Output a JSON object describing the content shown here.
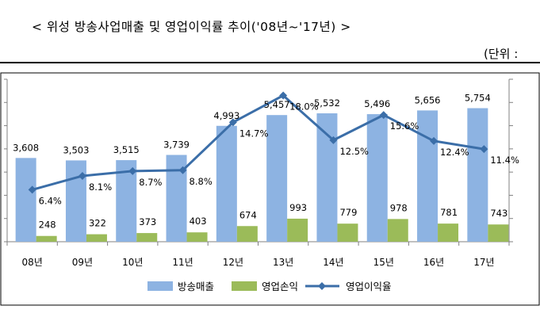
{
  "title": "< 위성 방송사업매출 및 영업이익률 추이('08년~'17년) >",
  "unit": "(단위 :",
  "chart_data": {
    "type": "bar",
    "categories": [
      "08년",
      "09년",
      "10년",
      "11년",
      "12년",
      "13년",
      "14년",
      "15년",
      "16년",
      "17년"
    ],
    "series": [
      {
        "name": "방송매출",
        "type": "bar",
        "color": "#8DB3E2",
        "axis": "left",
        "values": [
          3608,
          3503,
          3515,
          3739,
          4993,
          5457,
          5532,
          5496,
          5656,
          5754
        ],
        "labels": [
          "3,608",
          "3,503",
          "3,515",
          "3,739",
          "4,993",
          "5,457",
          "5,532",
          "5,496",
          "5,656",
          "5,754"
        ]
      },
      {
        "name": "영업손익",
        "type": "bar",
        "color": "#9BBB59",
        "axis": "left",
        "values": [
          248,
          322,
          373,
          403,
          674,
          993,
          779,
          978,
          781,
          743
        ],
        "labels": [
          "248",
          "322",
          "373",
          "403",
          "674",
          "993",
          "779",
          "978",
          "781",
          "743"
        ]
      },
      {
        "name": "영업이익율",
        "type": "line",
        "color": "#3B6EA8",
        "axis": "right",
        "values": [
          6.4,
          8.1,
          8.7,
          8.8,
          14.7,
          18.0,
          12.5,
          15.6,
          12.4,
          11.4
        ],
        "labels": [
          "6.4%",
          "8.1%",
          "8.7%",
          "8.8%",
          "14.7%",
          "18.0%",
          "12.5%",
          "15.6%",
          "12.4%",
          "11.4%"
        ]
      }
    ],
    "ylim": [
      0,
      7000
    ],
    "y2lim": [
      0,
      20
    ],
    "grid": false,
    "legend": "bottom"
  }
}
